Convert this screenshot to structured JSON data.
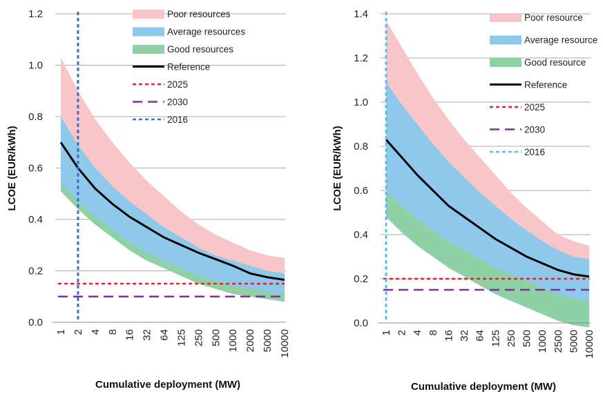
{
  "chart_data": [
    {
      "type": "area",
      "xlabel": "Cumulative deployment (MW)",
      "ylabel": "LCOE (EUR/kWh)",
      "ylim": [
        0.0,
        1.2
      ],
      "yticks": [
        "0.0",
        "0.2",
        "0.4",
        "0.6",
        "0.8",
        "1.0",
        "1.2"
      ],
      "categories": [
        "1",
        "2",
        "4",
        "8",
        "16",
        "32",
        "64",
        "125",
        "250",
        "500",
        "1000",
        "2000",
        "5000",
        "10000"
      ],
      "grid": "horizontal",
      "legend_position": "top-right",
      "series": [
        {
          "name": "Poor resources",
          "kind": "band",
          "color": "#f8c6c8",
          "values": [
            1.03,
            0.9,
            0.79,
            0.7,
            0.62,
            0.55,
            0.49,
            0.43,
            0.38,
            0.34,
            0.31,
            0.28,
            0.26,
            0.25
          ]
        },
        {
          "name": "Average resources",
          "kind": "band",
          "color": "#8ec9ec",
          "values": [
            0.8,
            0.69,
            0.6,
            0.53,
            0.47,
            0.42,
            0.37,
            0.33,
            0.29,
            0.26,
            0.24,
            0.22,
            0.2,
            0.19
          ]
        },
        {
          "name": "Good resources",
          "kind": "band",
          "color": "#8fd0a4",
          "values": [
            0.54,
            0.47,
            0.41,
            0.36,
            0.31,
            0.27,
            0.24,
            0.21,
            0.18,
            0.16,
            0.14,
            0.13,
            0.12,
            0.11
          ]
        },
        {
          "name": "Reference",
          "kind": "line",
          "color": "#000000",
          "dash": "solid",
          "values": [
            0.7,
            0.6,
            0.52,
            0.46,
            0.41,
            0.37,
            0.33,
            0.3,
            0.27,
            0.245,
            0.22,
            0.19,
            0.175,
            0.165
          ]
        },
        {
          "name": "2025",
          "kind": "hline",
          "color": "#e8202a",
          "dash": "short",
          "value": 0.15
        },
        {
          "name": "2030",
          "kind": "hline",
          "color": "#7b3294",
          "dash": "long",
          "value": 0.1
        },
        {
          "name": "2016",
          "kind": "vline",
          "color": "#3e6fc5",
          "dash": "short",
          "category": "2"
        }
      ]
    },
    {
      "type": "area",
      "xlabel": "Cumulative deployment (MW)",
      "ylabel": "LCOE (EUR/kWh)",
      "ylim": [
        0.0,
        1.4
      ],
      "yticks": [
        "0.0",
        "0.2",
        "0.4",
        "0.6",
        "0.8",
        "1.0",
        "1.2",
        "1.4"
      ],
      "categories": [
        "1",
        "2",
        "4",
        "8",
        "16",
        "32",
        "64",
        "125",
        "250",
        "500",
        "1000",
        "2500",
        "5000",
        "10000"
      ],
      "grid": "horizontal",
      "legend_position": "top-right",
      "series": [
        {
          "name": "Poor resource",
          "kind": "band",
          "color": "#f8c6c8",
          "values": [
            1.37,
            1.25,
            1.13,
            1.02,
            0.92,
            0.83,
            0.75,
            0.67,
            0.59,
            0.52,
            0.46,
            0.4,
            0.37,
            0.35
          ]
        },
        {
          "name": "Average resource",
          "kind": "band",
          "color": "#8ec9ec",
          "values": [
            1.09,
            0.99,
            0.9,
            0.81,
            0.73,
            0.66,
            0.59,
            0.53,
            0.47,
            0.42,
            0.37,
            0.33,
            0.3,
            0.29
          ]
        },
        {
          "name": "Good resource",
          "kind": "band",
          "color": "#8fd0a4",
          "values": [
            0.6,
            0.53,
            0.47,
            0.42,
            0.37,
            0.33,
            0.29,
            0.25,
            0.22,
            0.19,
            0.16,
            0.13,
            0.11,
            0.1
          ]
        },
        {
          "name": "Reference",
          "kind": "line",
          "color": "#000000",
          "dash": "solid",
          "values": [
            0.83,
            0.75,
            0.67,
            0.6,
            0.53,
            0.48,
            0.43,
            0.38,
            0.34,
            0.3,
            0.27,
            0.24,
            0.22,
            0.21
          ]
        },
        {
          "name": "2025",
          "kind": "hline",
          "color": "#e8202a",
          "dash": "short",
          "value": 0.2
        },
        {
          "name": "2030",
          "kind": "hline",
          "color": "#7b3294",
          "dash": "long",
          "value": 0.15
        },
        {
          "name": "2016",
          "kind": "vline",
          "color": "#5bbce8",
          "dash": "short",
          "category": "1"
        }
      ]
    }
  ]
}
